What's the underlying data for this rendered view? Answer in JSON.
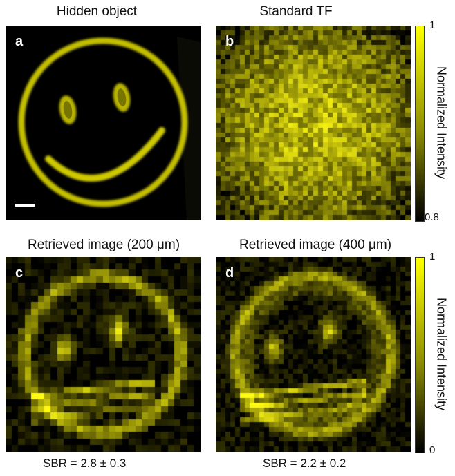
{
  "panels": {
    "a": {
      "letter": "a",
      "title": "Hidden object"
    },
    "b": {
      "letter": "b",
      "title": "Standard TF"
    },
    "c": {
      "letter": "c",
      "title": "Retrieved image (200 μm)",
      "sbr": "SBR = 2.8 ± 0.3"
    },
    "d": {
      "letter": "d",
      "title": "Retrieved image (400 μm)",
      "sbr": "SBR = 2.2 ± 0.2"
    }
  },
  "colorbar_top": {
    "max_label": "1",
    "min_label": "0.8",
    "label": "Normalized Intensity"
  },
  "colorbar_bottom": {
    "max_label": "1",
    "min_label": "0",
    "label": "Normalized Intensity"
  },
  "colors": {
    "yellow": "#ffff00",
    "background": "#000000"
  }
}
